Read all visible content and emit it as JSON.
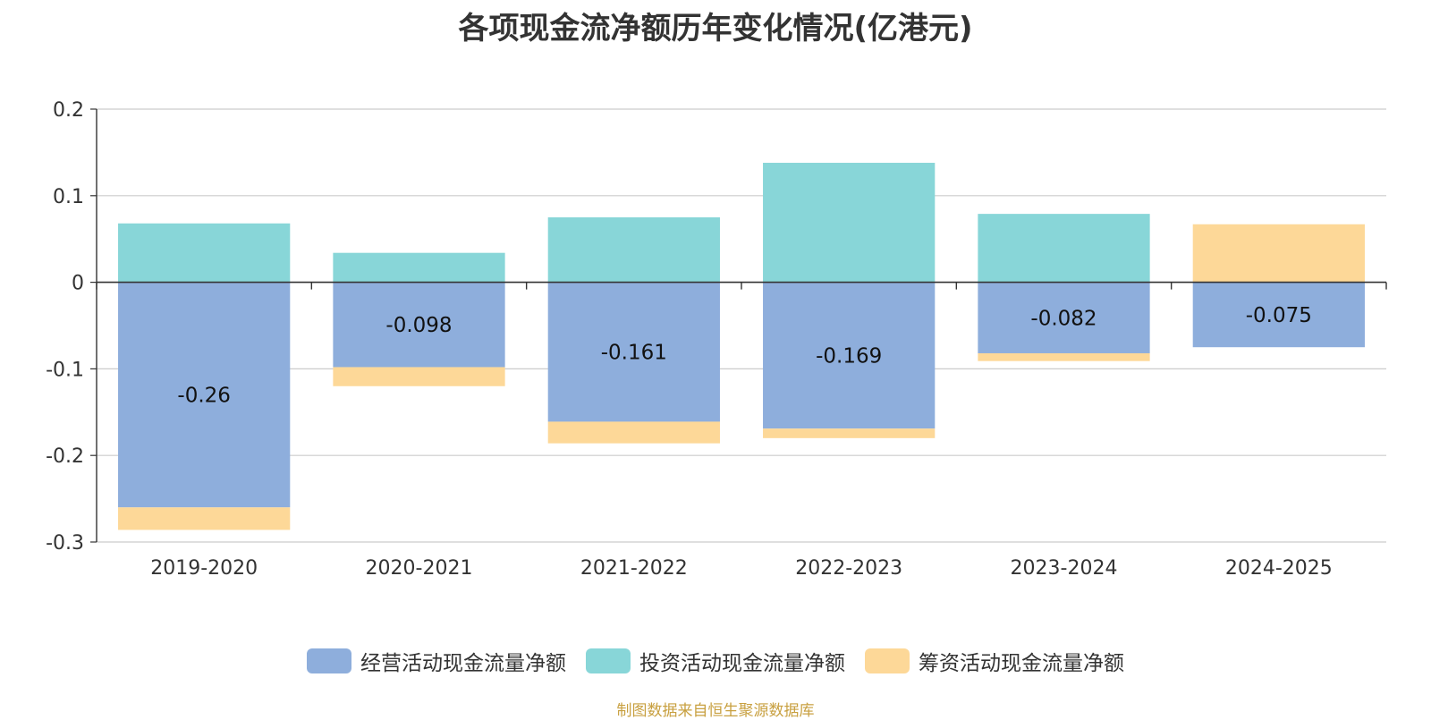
{
  "title": "各项现金流净额历年变化情况(亿港元)",
  "source": "制图数据来自恒生聚源数据库",
  "colors": {
    "operating": "#8eaedc",
    "investing": "#88d6d8",
    "financing": "#fdd898",
    "grid": "#cccccc",
    "axis": "#333333"
  },
  "chart_data": {
    "type": "bar",
    "stacked": true,
    "categories": [
      "2019-2020",
      "2020-2021",
      "2021-2022",
      "2022-2023",
      "2023-2024",
      "2024-2025"
    ],
    "series": [
      {
        "name": "经营活动现金流量净额",
        "key": "operating",
        "values": [
          -0.26,
          -0.098,
          -0.161,
          -0.169,
          -0.082,
          -0.075
        ],
        "labels": [
          "-0.26",
          "-0.098",
          "-0.161",
          "-0.169",
          "-0.082",
          "-0.075"
        ]
      },
      {
        "name": "投资活动现金流量净额",
        "key": "investing",
        "values": [
          0.068,
          0.034,
          0.075,
          0.138,
          0.079,
          0
        ]
      },
      {
        "name": "筹资活动现金流量净额",
        "key": "financing",
        "values": [
          -0.026,
          -0.022,
          -0.025,
          -0.011,
          -0.009,
          0.067
        ]
      }
    ],
    "ylim": [
      -0.3,
      0.2
    ],
    "yticks": [
      "0.2",
      "0.1",
      "0",
      "-0.1",
      "-0.2",
      "-0.3"
    ],
    "grid": true,
    "legend_position": "bottom"
  }
}
